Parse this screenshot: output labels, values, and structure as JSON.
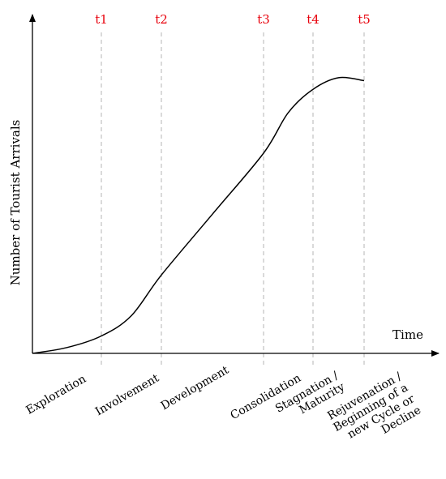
{
  "chart_data": {
    "type": "line",
    "title": "",
    "xlabel": "Time",
    "ylabel": "Number of Tourist Arrivals",
    "marker_color": "#e8000b",
    "time_markers": [
      "t1",
      "t2",
      "t3",
      "t4",
      "t5"
    ],
    "stages": [
      [
        "Exploration"
      ],
      [
        "Involvement"
      ],
      [
        "Development"
      ],
      [
        "Consolidation"
      ],
      [
        "Stagnation /",
        "Maturity"
      ],
      [
        "Rejuvenation /",
        "Beginning of a",
        "new Cycle or",
        "Decline"
      ]
    ],
    "grid": false,
    "series": [
      {
        "x": [
          0,
          0.5,
          1,
          1.5,
          2,
          2.5,
          3,
          3.5,
          4,
          4.5,
          5
        ],
        "y": [
          0,
          2,
          6,
          13,
          27,
          48,
          69,
          83,
          91,
          95,
          94
        ]
      }
    ]
  }
}
